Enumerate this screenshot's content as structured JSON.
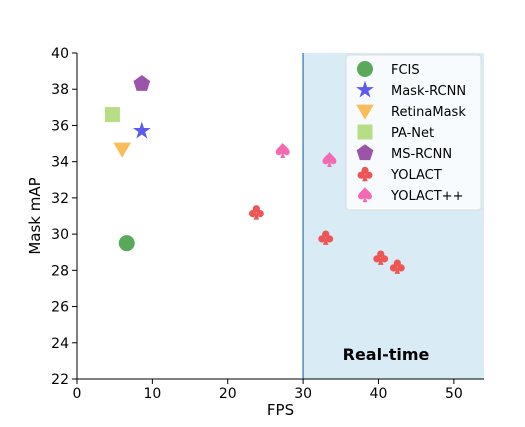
{
  "chart_data": {
    "type": "scatter",
    "xlabel": "FPS",
    "ylabel": "Mask mAP",
    "xlim": [
      0,
      54
    ],
    "ylim": [
      22,
      40
    ],
    "xticks": [
      0,
      10,
      20,
      30,
      40,
      50
    ],
    "yticks": [
      22,
      24,
      26,
      28,
      30,
      32,
      34,
      36,
      38,
      40
    ],
    "grid": false,
    "legend_position": "top-right",
    "realtime_region": {
      "x_start": 30,
      "label": "Real-time",
      "color": "#d9ebf5",
      "line_color": "#4f8fc9",
      "label_color": "#6b9fe0"
    },
    "series": [
      {
        "name": "FCIS",
        "marker": "circle",
        "color": "#5aa85a",
        "points": [
          {
            "x": 6.6,
            "y": 29.5
          }
        ]
      },
      {
        "name": "Mask-RCNN",
        "marker": "star",
        "color": "#5b5bf0",
        "points": [
          {
            "x": 8.6,
            "y": 35.7
          }
        ]
      },
      {
        "name": "RetinaMask",
        "marker": "triangle-down",
        "color": "#f9bd5b",
        "points": [
          {
            "x": 6.0,
            "y": 34.7
          }
        ]
      },
      {
        "name": "PA-Net",
        "marker": "square",
        "color": "#b7de85",
        "points": [
          {
            "x": 4.7,
            "y": 36.6
          }
        ]
      },
      {
        "name": "MS-RCNN",
        "marker": "pentagon",
        "color": "#9b55a8",
        "points": [
          {
            "x": 8.6,
            "y": 38.3
          }
        ]
      },
      {
        "name": "YOLACT",
        "marker": "club",
        "color": "#ee5555",
        "points": [
          {
            "x": 23.8,
            "y": 31.2
          },
          {
            "x": 33.0,
            "y": 29.8
          },
          {
            "x": 40.3,
            "y": 28.7
          },
          {
            "x": 42.5,
            "y": 28.2
          }
        ]
      },
      {
        "name": "YOLACT++",
        "marker": "spade",
        "color": "#f36ab3",
        "points": [
          {
            "x": 27.3,
            "y": 34.6
          },
          {
            "x": 33.5,
            "y": 34.1
          }
        ]
      }
    ]
  }
}
